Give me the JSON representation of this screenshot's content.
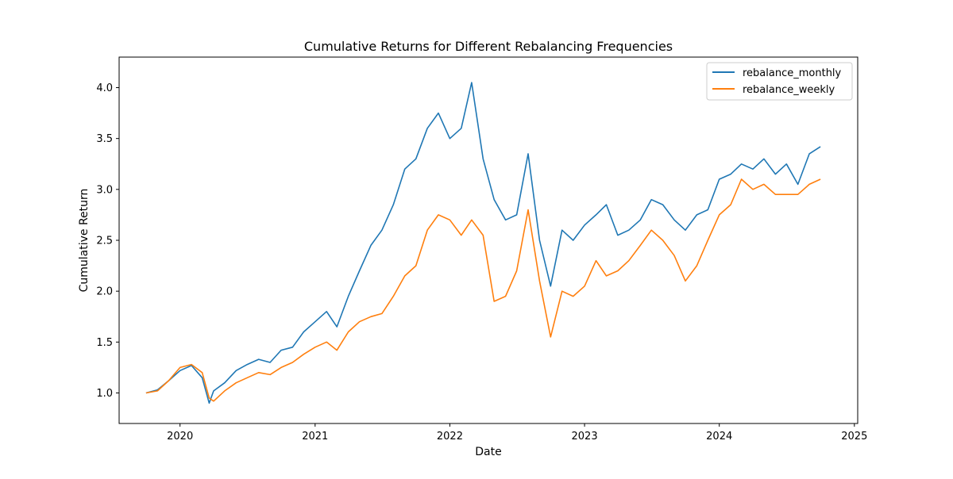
{
  "chart_data": {
    "type": "line",
    "title": "Cumulative Returns for Different Rebalancing Frequencies",
    "xlabel": "Date",
    "ylabel": "Cumulative Return",
    "x_ticks": [
      "2020",
      "2021",
      "2022",
      "2023",
      "2024",
      "2025"
    ],
    "y_ticks": [
      "1.0",
      "1.5",
      "2.0",
      "2.5",
      "3.0",
      "3.5",
      "4.0"
    ],
    "xlim": [
      "2019-07-20",
      "2025-01-10"
    ],
    "ylim": [
      0.7,
      4.3
    ],
    "grid": false,
    "legend_position": "upper right",
    "x": [
      "2019-10-01",
      "2019-11-01",
      "2019-12-01",
      "2020-01-01",
      "2020-02-01",
      "2020-03-01",
      "2020-03-20",
      "2020-04-01",
      "2020-05-01",
      "2020-06-01",
      "2020-07-01",
      "2020-08-01",
      "2020-09-01",
      "2020-10-01",
      "2020-11-01",
      "2020-12-01",
      "2021-01-01",
      "2021-02-01",
      "2021-03-01",
      "2021-04-01",
      "2021-05-01",
      "2021-06-01",
      "2021-07-01",
      "2021-08-01",
      "2021-09-01",
      "2021-10-01",
      "2021-11-01",
      "2021-12-01",
      "2022-01-01",
      "2022-02-01",
      "2022-03-01",
      "2022-04-01",
      "2022-05-01",
      "2022-06-01",
      "2022-07-01",
      "2022-08-01",
      "2022-09-01",
      "2022-10-01",
      "2022-11-01",
      "2022-12-01",
      "2023-01-01",
      "2023-02-01",
      "2023-03-01",
      "2023-04-01",
      "2023-05-01",
      "2023-06-01",
      "2023-07-01",
      "2023-08-01",
      "2023-09-01",
      "2023-10-01",
      "2023-11-01",
      "2023-12-01",
      "2024-01-01",
      "2024-02-01",
      "2024-03-01",
      "2024-04-01",
      "2024-05-01",
      "2024-06-01",
      "2024-07-01",
      "2024-08-01",
      "2024-09-01",
      "2024-10-01"
    ],
    "series": [
      {
        "name": "rebalance_monthly",
        "color": "#1f77b4",
        "values": [
          1.0,
          1.03,
          1.12,
          1.22,
          1.27,
          1.15,
          0.9,
          1.02,
          1.1,
          1.22,
          1.28,
          1.33,
          1.3,
          1.42,
          1.45,
          1.6,
          1.7,
          1.8,
          1.65,
          1.95,
          2.2,
          2.45,
          2.6,
          2.85,
          3.2,
          3.3,
          3.6,
          3.75,
          3.5,
          3.6,
          4.05,
          3.3,
          2.9,
          2.7,
          2.75,
          3.35,
          2.5,
          2.05,
          2.6,
          2.5,
          2.65,
          2.75,
          2.85,
          2.55,
          2.6,
          2.7,
          2.9,
          2.85,
          2.7,
          2.6,
          2.75,
          2.8,
          3.1,
          3.15,
          3.25,
          3.2,
          3.3,
          3.15,
          3.25,
          3.05,
          3.35,
          3.42
        ]
      },
      {
        "name": "rebalance_weekly",
        "color": "#ff7f0e",
        "values": [
          1.0,
          1.02,
          1.12,
          1.25,
          1.28,
          1.2,
          0.95,
          0.92,
          1.02,
          1.1,
          1.15,
          1.2,
          1.18,
          1.25,
          1.3,
          1.38,
          1.45,
          1.5,
          1.42,
          1.6,
          1.7,
          1.75,
          1.78,
          1.95,
          2.15,
          2.25,
          2.6,
          2.75,
          2.7,
          2.55,
          2.7,
          2.55,
          1.9,
          1.95,
          2.2,
          2.8,
          2.1,
          1.55,
          2.0,
          1.95,
          2.05,
          2.3,
          2.15,
          2.2,
          2.3,
          2.45,
          2.6,
          2.5,
          2.35,
          2.1,
          2.25,
          2.5,
          2.75,
          2.85,
          3.1,
          3.0,
          3.05,
          2.95,
          2.95,
          2.95,
          3.05,
          3.1
        ]
      }
    ]
  }
}
